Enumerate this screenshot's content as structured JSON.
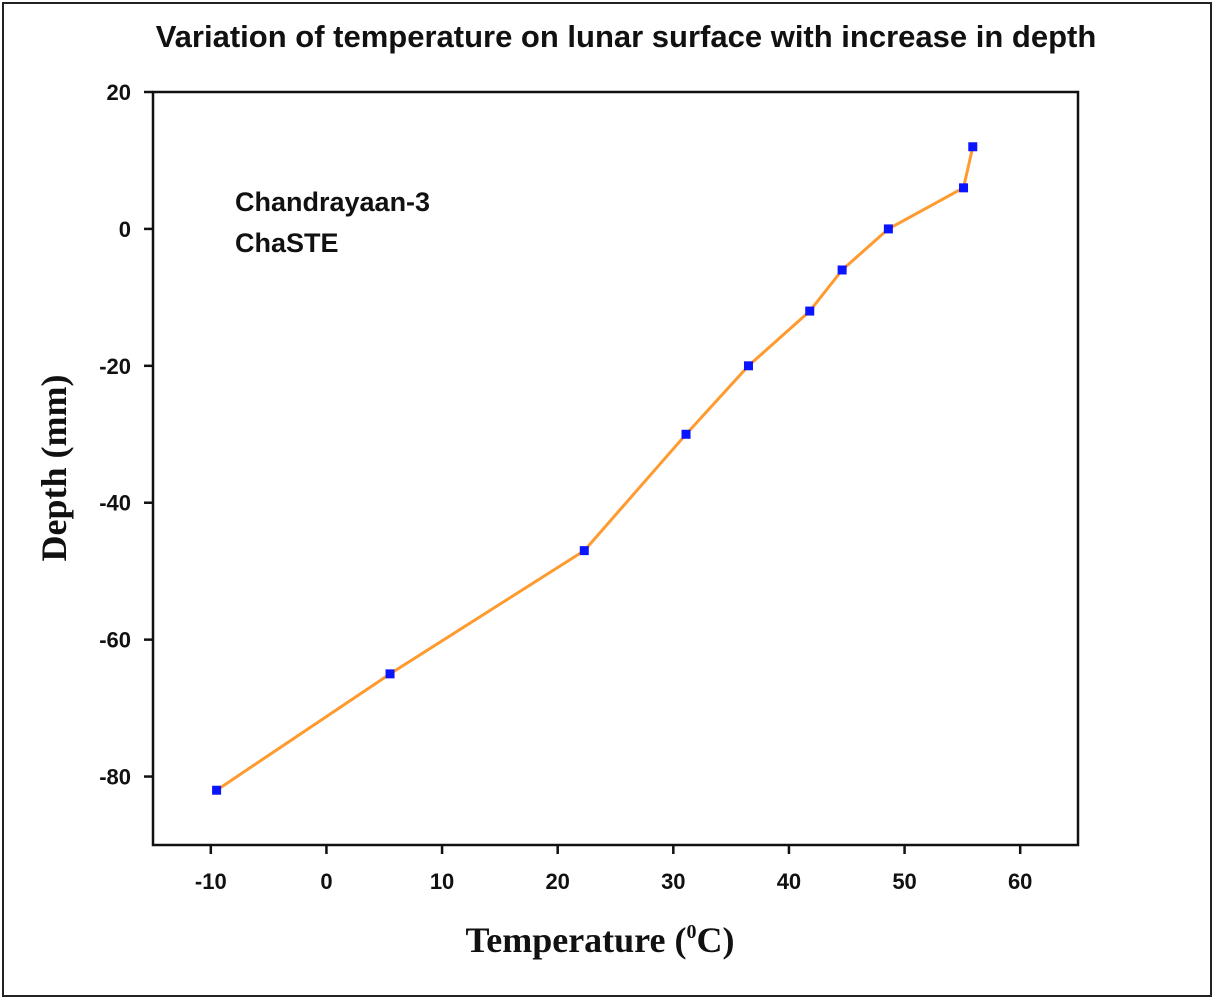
{
  "chart_data": {
    "type": "line",
    "title": "Variation of temperature on lunar surface with increase in depth",
    "xlabel_main": "Temperature (",
    "xlabel_sup": "0",
    "xlabel_unit": "C)",
    "ylabel": "Depth (mm)",
    "xlim": [
      -15,
      65
    ],
    "ylim": [
      -90,
      20
    ],
    "x_ticks": [
      -10,
      0,
      10,
      20,
      30,
      40,
      50,
      60
    ],
    "y_ticks": [
      -80,
      -60,
      -40,
      -20,
      0,
      20
    ],
    "annotations": [
      "Chandrayaan-3",
      "ChaSTE"
    ],
    "grid": false,
    "series": [
      {
        "line_color": "#ff9a2e",
        "marker_color": "#0a14ff",
        "marker": "square",
        "points": [
          {
            "x": -9.5,
            "y": -82
          },
          {
            "x": 5.5,
            "y": -65
          },
          {
            "x": 22.3,
            "y": -47
          },
          {
            "x": 31.1,
            "y": -30
          },
          {
            "x": 36.5,
            "y": -20
          },
          {
            "x": 41.8,
            "y": -12
          },
          {
            "x": 44.6,
            "y": -6
          },
          {
            "x": 48.6,
            "y": 0
          },
          {
            "x": 55.1,
            "y": 6
          },
          {
            "x": 55.9,
            "y": 12
          }
        ]
      }
    ]
  }
}
